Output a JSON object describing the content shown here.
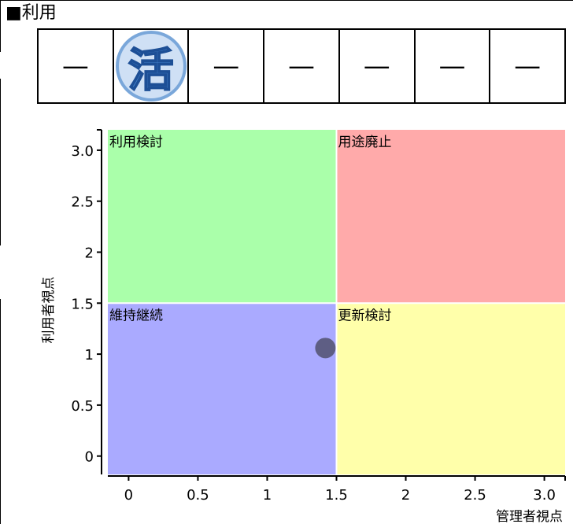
{
  "heading": "■利用",
  "cells": [
    "—",
    "活",
    "—",
    "—",
    "—",
    "—",
    "—"
  ],
  "chart_data": {
    "type": "scatter",
    "xlabel": "管理者視点",
    "ylabel": "利用者視点",
    "xlim": [
      -0.15,
      3.15
    ],
    "ylim": [
      -0.18,
      3.2
    ],
    "xticks": [
      0,
      0.5,
      1,
      1.5,
      2,
      2.5,
      3
    ],
    "xtick_labels": [
      "0",
      "0.5",
      "1",
      "1.5",
      "2",
      "2.5",
      "3.0"
    ],
    "yticks": [
      0,
      0.5,
      1,
      1.5,
      2,
      2.5,
      3
    ],
    "ytick_labels": [
      "0",
      "0.5",
      "1",
      "1.5",
      "2",
      "2.5",
      "3.0"
    ],
    "quadrants": [
      {
        "label": "利用検討",
        "x": [
          -0.15,
          1.5
        ],
        "y": [
          1.5,
          3.2
        ],
        "color": "#aaffaa"
      },
      {
        "label": "用途廃止",
        "x": [
          1.5,
          3.15
        ],
        "y": [
          1.5,
          3.2
        ],
        "color": "#ffaaaa"
      },
      {
        "label": "維持継続",
        "x": [
          -0.15,
          1.5
        ],
        "y": [
          -0.18,
          1.5
        ],
        "color": "#aaaaff"
      },
      {
        "label": "更新検討",
        "x": [
          1.5,
          3.15
        ],
        "y": [
          -0.18,
          1.5
        ],
        "color": "#ffffaa"
      }
    ],
    "points": [
      {
        "x": 1.42,
        "y": 1.06
      }
    ],
    "point_color": "#555577"
  }
}
